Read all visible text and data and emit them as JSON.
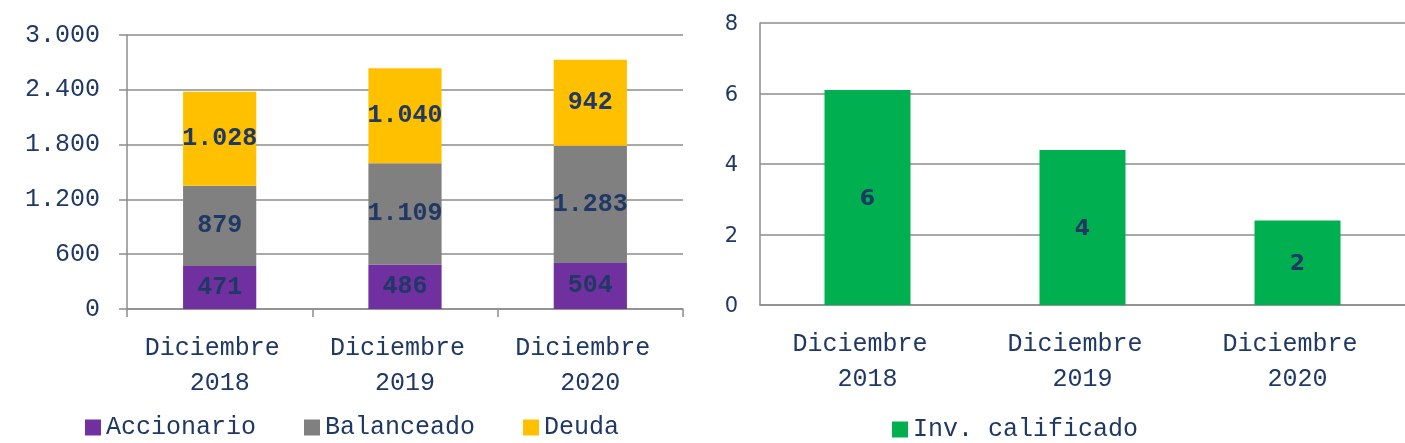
{
  "chart_data": [
    {
      "type": "bar",
      "stacked": true,
      "categories": [
        "Diciembre 2018",
        "Diciembre 2019",
        "Diciembre 2020"
      ],
      "series": [
        {
          "name": "Accionario",
          "color": "#7030a0",
          "values": [
            471,
            486,
            504
          ],
          "value_labels": [
            "471",
            "486",
            "504"
          ]
        },
        {
          "name": "Balanceado",
          "color": "#808080",
          "values": [
            879,
            1109,
            1283
          ],
          "value_labels": [
            "879",
            "1.109",
            "1.283"
          ]
        },
        {
          "name": "Deuda",
          "color": "#ffc000",
          "values": [
            1028,
            1040,
            942
          ],
          "value_labels": [
            "1.028",
            "1.040",
            "942"
          ]
        }
      ],
      "ylim": [
        0,
        3000
      ],
      "yticks": [
        0,
        600,
        {
          "value": 1200,
          "label": "1.200"
        },
        {
          "value": 1800,
          "label": "1.800"
        },
        {
          "value": 2400,
          "label": "2.400"
        },
        {
          "value": 3000,
          "label": "3.000"
        }
      ],
      "grid": "y",
      "legend": "bottom"
    },
    {
      "type": "bar",
      "categories": [
        "Diciembre 2018",
        "Diciembre 2019",
        "Diciembre 2020"
      ],
      "series": [
        {
          "name": "Inv. calificado",
          "color": "#00b050",
          "values": [
            6.1,
            4.4,
            2.4
          ],
          "value_labels": [
            "6",
            "4",
            "2"
          ]
        }
      ],
      "ylim": [
        0,
        8
      ],
      "yticks": [
        0,
        2,
        4,
        6,
        8
      ],
      "grid": "y",
      "legend": "bottom"
    }
  ]
}
